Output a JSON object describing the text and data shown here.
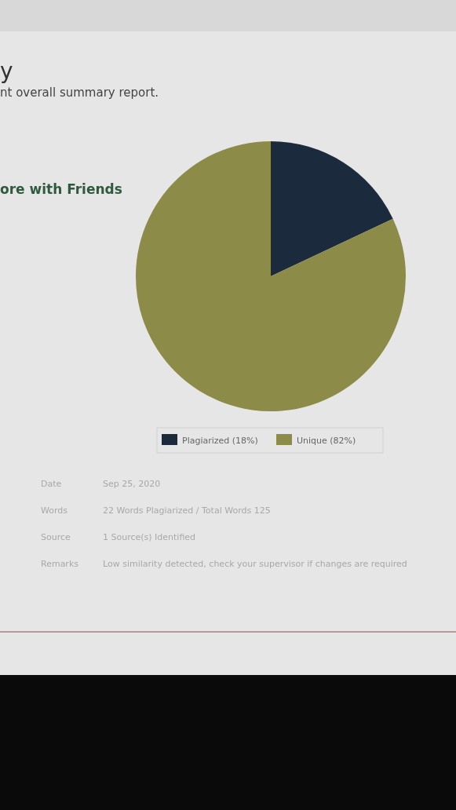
{
  "chart_data": {
    "type": "pie",
    "title": "y",
    "subtitle": "nt overall summary report.",
    "categories": [
      "Plagiarized (18%)",
      "Unique (82%)"
    ],
    "values": [
      18,
      82
    ],
    "colors": [
      "#1c2a3e",
      "#8c8c48"
    ],
    "legend": "bottom",
    "annotations": [
      "ore with Friends",
      "Date",
      "Sep 25, 2020",
      "Words",
      "22 Words Plagiarized / Total Words 125",
      "Source",
      "1 Source(s) Identified",
      "Remarks",
      "Low similarity detected, check your supervisor if changes are required"
    ]
  }
}
